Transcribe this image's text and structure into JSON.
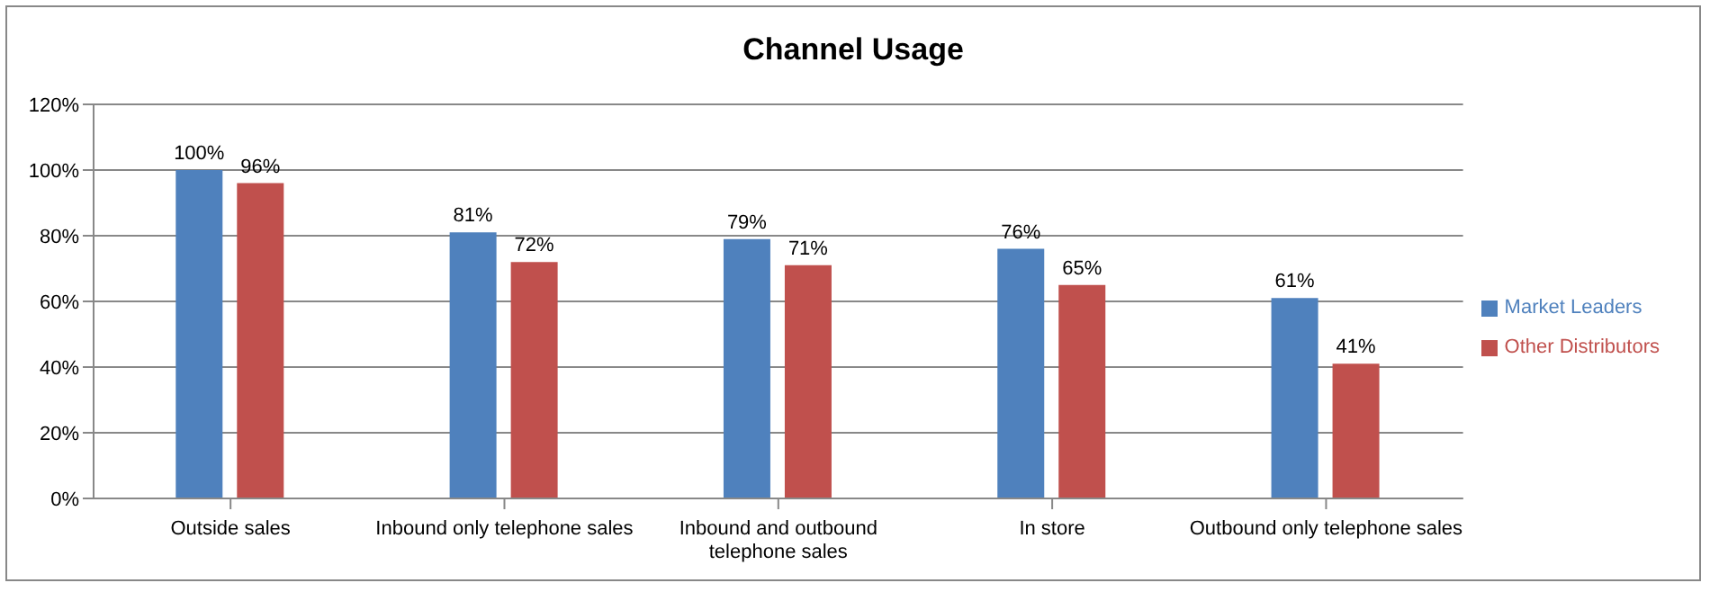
{
  "chart_data": {
    "type": "bar",
    "title": "Channel Usage",
    "categories": [
      "Outside sales",
      "Inbound only telephone sales",
      "Inbound and outbound telephone sales",
      "In store",
      "Outbound only telephone sales"
    ],
    "series": [
      {
        "name": "Market Leaders",
        "color": "#4f81bd",
        "values": [
          100,
          81,
          79,
          76,
          61
        ],
        "value_labels": [
          "100%",
          "81%",
          "79%",
          "76%",
          "61%"
        ]
      },
      {
        "name": "Other Distributors",
        "color": "#c0504d",
        "values": [
          96,
          72,
          71,
          65,
          41
        ],
        "value_labels": [
          "96%",
          "72%",
          "71%",
          "65%",
          "41%"
        ]
      }
    ],
    "ylim": [
      0,
      120
    ],
    "yticks": [
      {
        "value": 0,
        "label": "0%"
      },
      {
        "value": 20,
        "label": "20%"
      },
      {
        "value": 40,
        "label": "40%"
      },
      {
        "value": 60,
        "label": "60%"
      },
      {
        "value": 80,
        "label": "80%"
      },
      {
        "value": 100,
        "label": "100%"
      },
      {
        "value": 120,
        "label": "120%"
      }
    ],
    "grid": "y",
    "legend": "right"
  }
}
